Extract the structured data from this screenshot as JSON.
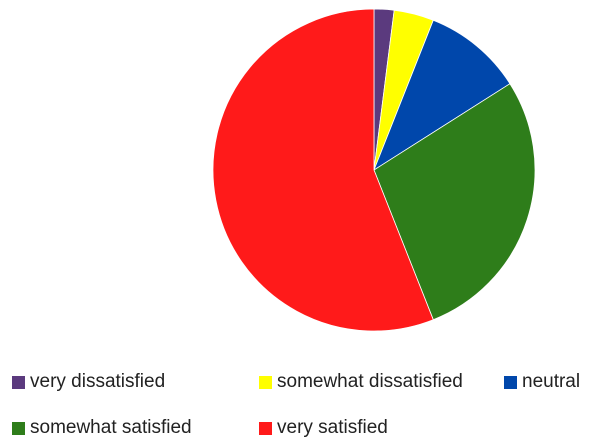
{
  "chart_data": {
    "type": "pie",
    "title": "",
    "categories": [
      "very dissatisfied",
      "somewhat dissatisfied",
      "neutral",
      "somewhat satisfied",
      "very satisfied"
    ],
    "values": [
      2,
      4,
      10,
      28,
      56
    ],
    "colors": [
      "#5b3a7e",
      "#ffff00",
      "#0047ab",
      "#2e7d1a",
      "#ff1a1a"
    ],
    "start_angle_deg": 0,
    "direction": "clockwise",
    "legend": "bottom"
  }
}
